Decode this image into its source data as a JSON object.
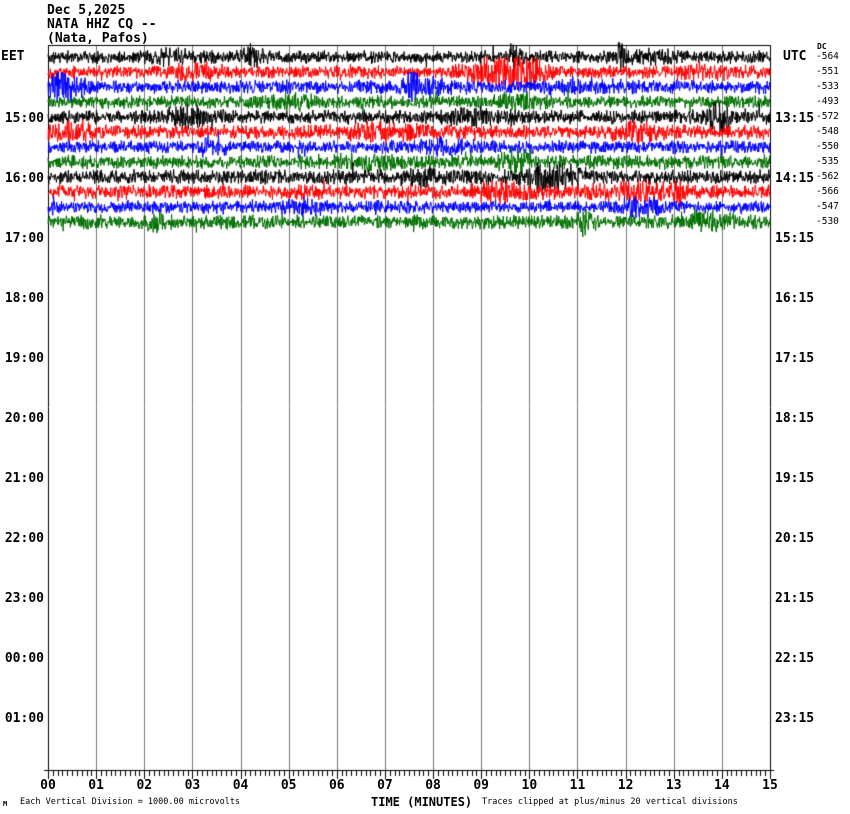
{
  "header": {
    "date": "Dec 5,2025",
    "station_line": "NATA HHZ CQ --",
    "location_line": "(Nata, Pafos)"
  },
  "axis": {
    "left_timezone": "EET",
    "right_timezone": "UTC",
    "dc_column_label": "DC",
    "left_hour_labels": [
      "15:00",
      "16:00",
      "17:00",
      "18:00",
      "19:00",
      "20:00",
      "21:00",
      "22:00",
      "23:00",
      "00:00",
      "01:00"
    ],
    "right_hour_labels": [
      "13:15",
      "14:15",
      "15:15",
      "16:15",
      "17:15",
      "18:15",
      "19:15",
      "20:15",
      "21:15",
      "22:15",
      "23:15"
    ],
    "minute_labels": [
      "00",
      "01",
      "02",
      "03",
      "04",
      "05",
      "06",
      "07",
      "08",
      "09",
      "10",
      "11",
      "12",
      "13",
      "14",
      "15"
    ],
    "x_axis_title": "TIME (MINUTES)"
  },
  "footer": {
    "watermark": "M",
    "scale_note": "Each Vertical Division = 1000.00 microvolts",
    "clip_note": "Traces clipped at plus/minus 20 vertical divisions"
  },
  "colors": {
    "black": "#000000",
    "red": "#ff0000",
    "blue": "#0000ff",
    "green": "#007000",
    "grid": "#787878",
    "frame": "#000000"
  },
  "chart_data": {
    "type": "line",
    "subtype": "helicorder-seismogram",
    "station": "NATA HHZ CQ --",
    "station_location": "(Nata, Pafos)",
    "date": "Dec 5,2025",
    "xlabel": "TIME (MINUTES)",
    "xlim": [
      0,
      15
    ],
    "minutes_per_trace": 15,
    "traces_per_hour": 4,
    "vertical_division_microvolts": 1000.0,
    "clip_divisions": 20,
    "dc_offsets": [
      -564,
      -551,
      -533,
      -493,
      -572,
      -548,
      -550,
      -535,
      -562,
      -566,
      -547,
      -530
    ],
    "trace_rows": [
      {
        "eet_start": "14:00",
        "color": "black",
        "dc_offset": -564,
        "seed": 11,
        "base_amp": 4.5,
        "bursts": [
          [
            2.6,
            0.3,
            3
          ],
          [
            4.25,
            0.12,
            7
          ],
          [
            9.7,
            0.08,
            9
          ],
          [
            11.9,
            0.06,
            10
          ],
          [
            12.6,
            0.4,
            2.5
          ]
        ]
      },
      {
        "eet_start": "14:15",
        "color": "red",
        "dc_offset": -551,
        "seed": 22,
        "base_amp": 4.5,
        "bursts": [
          [
            3.1,
            0.3,
            3.5
          ],
          [
            8.9,
            0.25,
            5
          ],
          [
            9.7,
            0.35,
            13
          ],
          [
            13.6,
            0.5,
            2.5
          ]
        ]
      },
      {
        "eet_start": "14:30",
        "color": "blue",
        "dc_offset": -533,
        "seed": 33,
        "base_amp": 4.8,
        "bursts": [
          [
            0.3,
            0.3,
            8
          ],
          [
            7.55,
            0.07,
            12
          ],
          [
            7.9,
            0.3,
            4
          ],
          [
            11.2,
            0.5,
            2.5
          ]
        ]
      },
      {
        "eet_start": "14:45",
        "color": "green",
        "dc_offset": -493,
        "seed": 44,
        "base_amp": 4.5,
        "bursts": [
          [
            5.1,
            0.4,
            2.5
          ],
          [
            9.8,
            0.3,
            4
          ]
        ]
      },
      {
        "eet_start": "15:00",
        "color": "black",
        "dc_offset": -572,
        "seed": 55,
        "base_amp": 4.8,
        "bursts": [
          [
            2.9,
            0.3,
            4
          ],
          [
            9.0,
            0.5,
            3
          ],
          [
            13.95,
            0.15,
            8
          ]
        ]
      },
      {
        "eet_start": "15:15",
        "color": "red",
        "dc_offset": -548,
        "seed": 66,
        "base_amp": 5,
        "bursts": [
          [
            0.6,
            0.3,
            3.5
          ],
          [
            7.0,
            0.6,
            2.5
          ],
          [
            12.3,
            0.4,
            4
          ]
        ]
      },
      {
        "eet_start": "15:30",
        "color": "blue",
        "dc_offset": -550,
        "seed": 77,
        "base_amp": 4.5,
        "bursts": [
          [
            3.4,
            0.2,
            4
          ],
          [
            8.3,
            0.4,
            3
          ]
        ]
      },
      {
        "eet_start": "15:45",
        "color": "green",
        "dc_offset": -535,
        "seed": 88,
        "base_amp": 5,
        "bursts": [
          [
            6.5,
            0.4,
            2.5
          ],
          [
            9.7,
            0.2,
            5
          ]
        ]
      },
      {
        "eet_start": "16:00",
        "color": "black",
        "dc_offset": -562,
        "seed": 99,
        "base_amp": 5.2,
        "bursts": [
          [
            7.8,
            0.3,
            3.5
          ],
          [
            10.35,
            0.3,
            8
          ],
          [
            10.9,
            0.15,
            5
          ]
        ]
      },
      {
        "eet_start": "16:15",
        "color": "red",
        "dc_offset": -566,
        "seed": 110,
        "base_amp": 5.2,
        "bursts": [
          [
            9.4,
            0.4,
            4
          ],
          [
            12.2,
            0.5,
            4
          ],
          [
            13.1,
            0.07,
            9
          ]
        ]
      },
      {
        "eet_start": "16:30",
        "color": "blue",
        "dc_offset": -547,
        "seed": 121,
        "base_amp": 4.5,
        "bursts": [
          [
            5.3,
            0.3,
            3
          ],
          [
            12.3,
            0.3,
            4
          ]
        ]
      },
      {
        "eet_start": "16:45",
        "color": "green",
        "dc_offset": -530,
        "seed": 132,
        "base_amp": 5,
        "bursts": [
          [
            2.2,
            0.15,
            5
          ],
          [
            11.15,
            0.1,
            9
          ],
          [
            13.8,
            0.3,
            4
          ]
        ]
      }
    ],
    "data_note": "Continuous background noise; traces plotted for 14:00-17:00 EET (ending 15:15 UTC row); rest of day blank."
  }
}
